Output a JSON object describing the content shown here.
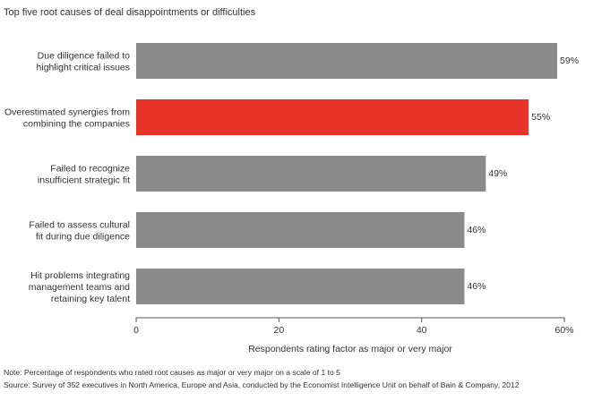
{
  "chart_data": {
    "type": "bar",
    "orientation": "horizontal",
    "title": "Top five root causes of deal disappointments or difficulties",
    "categories": [
      [
        "Due diligence failed to",
        "highlight critical issues"
      ],
      [
        "Overestimated synergies from",
        "combining the companies"
      ],
      [
        "Failed to recognize",
        "insufficient strategic fit"
      ],
      [
        "Failed to assess cultural",
        "fit during due diligence"
      ],
      [
        "Hit problems integrating",
        "management teams and",
        "retaining key talent"
      ]
    ],
    "values": [
      59,
      55,
      49,
      46,
      46
    ],
    "value_labels": [
      "59%",
      "55%",
      "49%",
      "46%",
      "46%"
    ],
    "bar_colors": [
      "#8a8a8a",
      "#e8332a",
      "#8a8a8a",
      "#8a8a8a",
      "#8a8a8a"
    ],
    "xlim": [
      0,
      60
    ],
    "xticks": [
      "0",
      "20",
      "40",
      "60%"
    ],
    "xlabel": "Respondents rating factor as major or very major",
    "grid": false,
    "legend": "none"
  },
  "notes": {
    "note": "Note: Percentage of respondents who rated root causes as major or very major on a scale of 1 to 5",
    "source": "Source: Survey of 352 executives in North America, Europe and Asia, conducted by the Economist Intelligence Unit on behalf of Bain & Company, 2012"
  }
}
